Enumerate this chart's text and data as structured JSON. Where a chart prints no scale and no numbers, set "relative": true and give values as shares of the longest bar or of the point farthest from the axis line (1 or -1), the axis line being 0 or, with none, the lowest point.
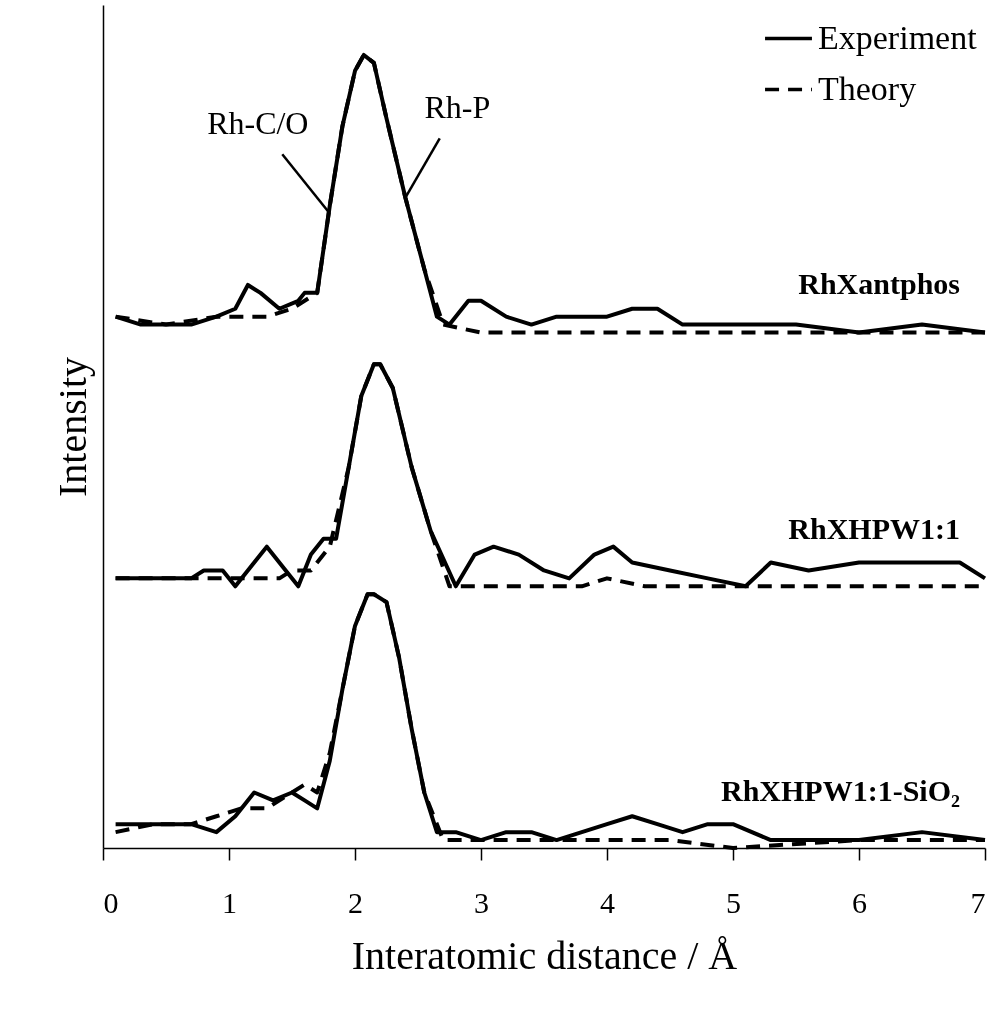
{
  "chart_data": {
    "type": "line",
    "relative": true,
    "xlabel": "Interatomic distance / Å",
    "ylabel": "Intensity",
    "xlim": [
      0,
      7
    ],
    "xticks": [
      0,
      1,
      2,
      3,
      4,
      5,
      6,
      7
    ],
    "legend": "top right",
    "tick_labels": "x",
    "annotations": [
      {
        "text": "Rh-C/O",
        "x": 1.8,
        "y": 0.8
      },
      {
        "text": "Rh-P",
        "x": 2.4,
        "y": 0.82
      },
      "RhXantphos",
      "RhXHPW1:1",
      "RhXHPW1:1-SiO₂"
    ],
    "series": [
      {
        "name": "Experiment",
        "color": "#000000",
        "line_style": "solid",
        "x": [
          0.1,
          0.3,
          0.5,
          0.7,
          0.9,
          1.05,
          1.15,
          1.25,
          1.4,
          1.55,
          1.6,
          1.7,
          1.8,
          1.9,
          2.0,
          2.07,
          2.15,
          2.25,
          2.4,
          2.55,
          2.65,
          2.75,
          2.9,
          3.0,
          3.2,
          3.4,
          3.6,
          3.8,
          4.0,
          4.2,
          4.4,
          4.6,
          4.8,
          5.0,
          5.5,
          6.0,
          6.5,
          7.0
        ],
        "values": [
          0.67,
          0.66,
          0.66,
          0.66,
          0.67,
          0.68,
          0.71,
          0.7,
          0.68,
          0.69,
          0.7,
          0.7,
          0.81,
          0.91,
          0.98,
          1.0,
          0.99,
          0.92,
          0.82,
          0.73,
          0.67,
          0.66,
          0.69,
          0.69,
          0.67,
          0.66,
          0.67,
          0.67,
          0.67,
          0.68,
          0.68,
          0.66,
          0.66,
          0.66,
          0.66,
          0.65,
          0.66,
          0.65
        ]
      },
      {
        "name": "Theory",
        "color": "#000000",
        "line_style": "dashed",
        "x": [
          0.1,
          0.5,
          0.9,
          1.1,
          1.3,
          1.5,
          1.7,
          1.8,
          1.9,
          2.0,
          2.07,
          2.15,
          2.25,
          2.4,
          2.55,
          2.7,
          3.0,
          4.0,
          5.0,
          6.0,
          7.0
        ],
        "values": [
          0.67,
          0.66,
          0.67,
          0.67,
          0.67,
          0.68,
          0.7,
          0.81,
          0.91,
          0.98,
          1.0,
          0.99,
          0.92,
          0.82,
          0.73,
          0.66,
          0.65,
          0.65,
          0.65,
          0.65,
          0.65
        ]
      },
      {
        "color": "#000000",
        "line_style": "solid",
        "x": [
          0.1,
          0.4,
          0.7,
          0.8,
          0.95,
          1.05,
          1.2,
          1.3,
          1.45,
          1.55,
          1.65,
          1.75,
          1.85,
          1.95,
          2.05,
          2.15,
          2.2,
          2.3,
          2.45,
          2.6,
          2.8,
          2.95,
          3.1,
          3.3,
          3.5,
          3.7,
          3.9,
          4.05,
          4.2,
          4.5,
          4.8,
          5.1,
          5.3,
          5.6,
          6.0,
          6.5,
          6.8,
          7.0
        ],
        "values": [
          0.34,
          0.34,
          0.34,
          0.35,
          0.35,
          0.33,
          0.36,
          0.38,
          0.35,
          0.33,
          0.37,
          0.39,
          0.39,
          0.48,
          0.57,
          0.61,
          0.61,
          0.58,
          0.48,
          0.4,
          0.33,
          0.37,
          0.38,
          0.37,
          0.35,
          0.34,
          0.37,
          0.38,
          0.36,
          0.35,
          0.34,
          0.33,
          0.36,
          0.35,
          0.36,
          0.36,
          0.36,
          0.34
        ]
      },
      {
        "color": "#000000",
        "line_style": "dashed",
        "x": [
          0.1,
          0.5,
          0.9,
          1.2,
          1.4,
          1.5,
          1.65,
          1.8,
          1.95,
          2.05,
          2.15,
          2.2,
          2.3,
          2.45,
          2.6,
          2.75,
          3.0,
          3.5,
          3.8,
          4.0,
          4.3,
          4.6,
          5.0,
          6.0,
          7.0
        ],
        "values": [
          0.34,
          0.34,
          0.34,
          0.34,
          0.34,
          0.35,
          0.35,
          0.38,
          0.48,
          0.57,
          0.61,
          0.61,
          0.58,
          0.48,
          0.4,
          0.33,
          0.33,
          0.33,
          0.33,
          0.34,
          0.33,
          0.33,
          0.33,
          0.33,
          0.33
        ]
      },
      {
        "color": "#000000",
        "line_style": "solid",
        "x": [
          0.1,
          0.4,
          0.7,
          0.9,
          1.05,
          1.2,
          1.35,
          1.5,
          1.6,
          1.7,
          1.8,
          1.9,
          2.0,
          2.1,
          2.15,
          2.25,
          2.35,
          2.45,
          2.55,
          2.65,
          2.8,
          3.0,
          3.2,
          3.4,
          3.6,
          3.8,
          4.0,
          4.2,
          4.4,
          4.6,
          4.8,
          5.0,
          5.3,
          5.6,
          6.0,
          6.5,
          7.0
        ],
        "values": [
          0.03,
          0.03,
          0.03,
          0.02,
          0.04,
          0.07,
          0.06,
          0.07,
          0.06,
          0.05,
          0.11,
          0.2,
          0.28,
          0.32,
          0.32,
          0.31,
          0.24,
          0.15,
          0.07,
          0.02,
          0.02,
          0.01,
          0.02,
          0.02,
          0.01,
          0.02,
          0.03,
          0.04,
          0.03,
          0.02,
          0.03,
          0.03,
          0.01,
          0.01,
          0.01,
          0.02,
          0.01
        ]
      },
      {
        "color": "#000000",
        "line_style": "dashed",
        "x": [
          0.1,
          0.4,
          0.7,
          0.9,
          1.1,
          1.3,
          1.5,
          1.6,
          1.7,
          1.8,
          1.9,
          2.0,
          2.1,
          2.15,
          2.25,
          2.35,
          2.45,
          2.55,
          2.7,
          3.0,
          3.5,
          4.0,
          4.5,
          5.0,
          6.0,
          7.0
        ],
        "values": [
          0.02,
          0.03,
          0.03,
          0.04,
          0.05,
          0.05,
          0.07,
          0.08,
          0.07,
          0.12,
          0.2,
          0.28,
          0.32,
          0.32,
          0.31,
          0.24,
          0.15,
          0.07,
          0.01,
          0.01,
          0.01,
          0.01,
          0.01,
          0.0,
          0.01,
          0.01
        ]
      }
    ]
  }
}
